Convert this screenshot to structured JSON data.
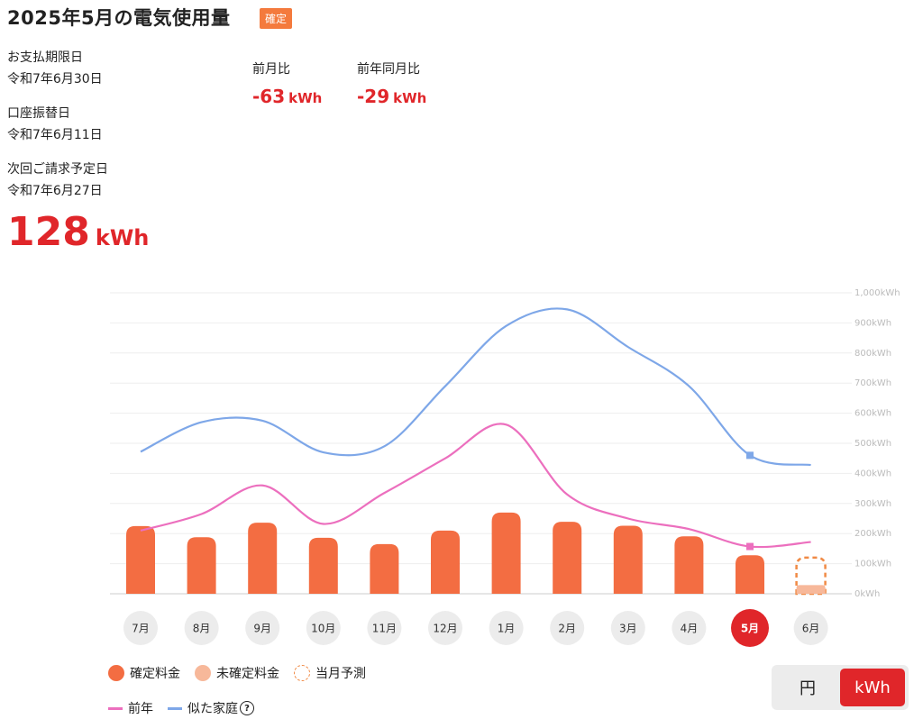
{
  "header": {
    "title": "2025年5月の電気使用量",
    "badge": "確定"
  },
  "info": {
    "payment_due_label": "お支払期限日",
    "payment_due_value": "令和7年6月30日",
    "transfer_label": "口座振替日",
    "transfer_value": "令和7年6月11日",
    "next_bill_label": "次回ご請求予定日",
    "next_bill_value": "令和7年6月27日"
  },
  "comparison": {
    "mom_label": "前月比",
    "mom_value": "-63",
    "mom_unit": "kWh",
    "yoy_label": "前年同月比",
    "yoy_value": "-29",
    "yoy_unit": "kWh"
  },
  "usage": {
    "value": "128",
    "unit": "kWh"
  },
  "chart_data": {
    "type": "bar",
    "categories": [
      "7月",
      "8月",
      "9月",
      "10月",
      "11月",
      "12月",
      "1月",
      "2月",
      "3月",
      "4月",
      "5月",
      "6月"
    ],
    "selected_category": "5月",
    "y_ticks": [
      "0kWh",
      "100kWh",
      "200kWh",
      "300kWh",
      "400kWh",
      "500kWh",
      "600kWh",
      "700kWh",
      "800kWh",
      "900kWh",
      "1,000kWh"
    ],
    "ylim": [
      0,
      1000
    ],
    "grid": true,
    "series": [
      {
        "name": "確定料金",
        "kind": "bar",
        "values": [
          225,
          188,
          236,
          186,
          165,
          210,
          270,
          239,
          226,
          191,
          128,
          null
        ]
      },
      {
        "name": "未確定料金",
        "kind": "bar",
        "values": [
          null,
          null,
          null,
          null,
          null,
          null,
          null,
          null,
          null,
          null,
          null,
          29
        ]
      },
      {
        "name": "当月予測",
        "kind": "bar-outline",
        "values": [
          null,
          null,
          null,
          null,
          null,
          null,
          null,
          null,
          null,
          null,
          null,
          120
        ]
      },
      {
        "name": "前年",
        "kind": "line",
        "values": [
          210,
          265,
          360,
          232,
          335,
          450,
          562,
          330,
          250,
          215,
          157,
          172
        ]
      },
      {
        "name": "似た家庭",
        "kind": "line",
        "values": [
          472,
          570,
          575,
          470,
          490,
          690,
          890,
          945,
          820,
          690,
          460,
          428
        ]
      }
    ],
    "colors": {
      "confirmed": "#f36d42",
      "unconfirmed": "#f7b89a",
      "forecast": "#f08a45",
      "prev_year": "#ec6fbe",
      "similar": "#7ea7e8",
      "selected": "#e0262a"
    }
  },
  "legend": {
    "confirmed": "確定料金",
    "unconfirmed": "未確定料金",
    "forecast": "当月予測",
    "prev_year": "前年",
    "similar": "似た家庭"
  },
  "unit_toggle": {
    "yen": "円",
    "kwh": "kWh",
    "active": "kWh"
  }
}
